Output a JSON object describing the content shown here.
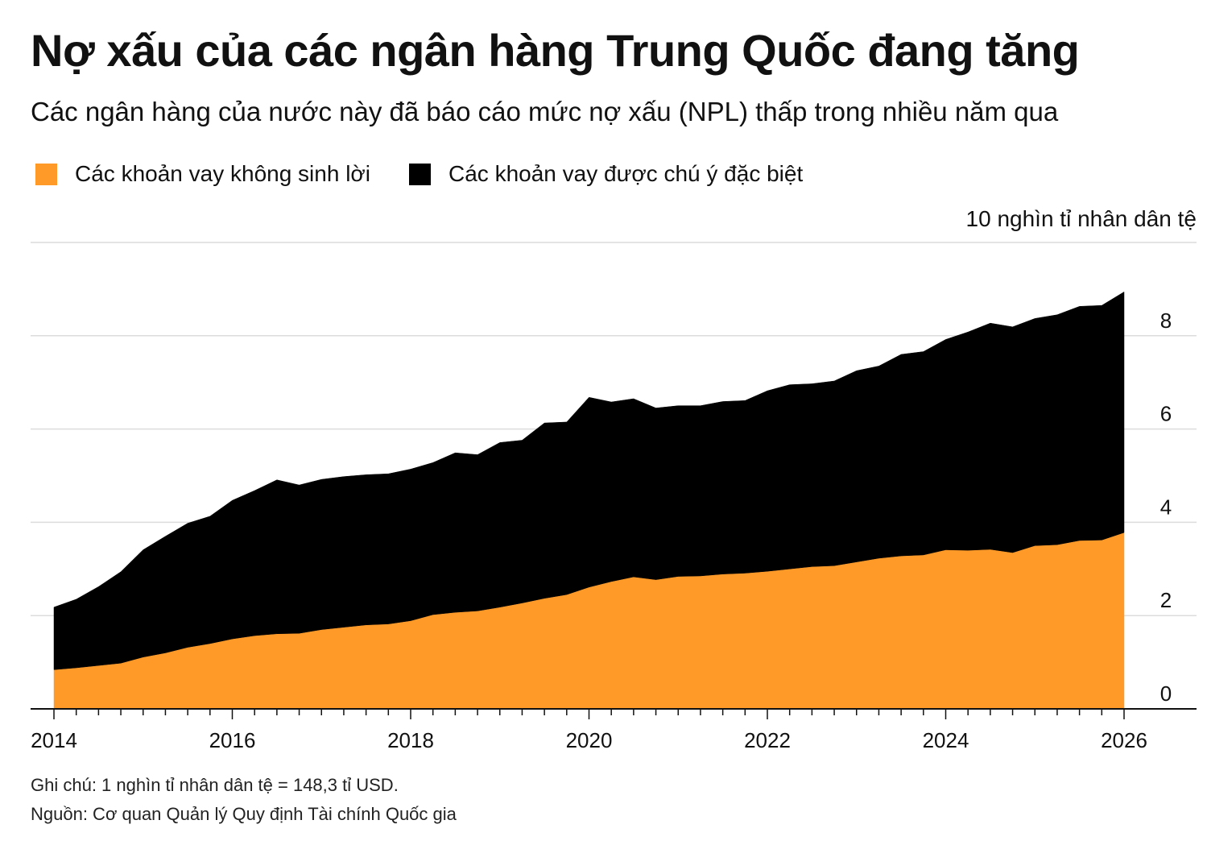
{
  "header": {
    "title": "Nợ xấu của các ngân hàng Trung Quốc đang tăng",
    "subtitle": "Các ngân hàng của nước này đã báo cáo mức nợ xấu (NPL) thấp trong nhiều năm qua"
  },
  "legend": {
    "items": [
      {
        "label": "Các khoản vay không sinh lời",
        "color": "#FF9A28"
      },
      {
        "label": "Các khoản vay được chú ý đặc biệt",
        "color": "#000000"
      }
    ]
  },
  "unit_label": "10 nghìn tỉ nhân dân tệ",
  "notes": {
    "note": "Ghi chú: 1 nghìn tỉ nhân dân tệ = 148,3 tỉ USD.",
    "source": "Nguồn: Cơ quan Quản lý Quy định Tài chính Quốc gia"
  },
  "chart_data": {
    "type": "area",
    "stacked": true,
    "title": "Nợ xấu của các ngân hàng Trung Quốc đang tăng",
    "subtitle": "Các ngân hàng của nước này đã báo cáo mức nợ xấu (NPL) thấp trong nhiều năm qua",
    "ylabel": "10 nghìn tỉ nhân dân tệ",
    "ylim": [
      0,
      10
    ],
    "yticks": [
      0,
      2,
      4,
      6,
      8
    ],
    "xlim": [
      2014,
      2026
    ],
    "xticks": [
      2014,
      2016,
      2018,
      2020,
      2022,
      2024,
      2026
    ],
    "y_axis_position": "right",
    "grid": true,
    "legend_position": "top-left",
    "x": [
      2014.0,
      2014.25,
      2014.5,
      2014.75,
      2015.0,
      2015.25,
      2015.5,
      2015.75,
      2016.0,
      2016.25,
      2016.5,
      2016.75,
      2017.0,
      2017.25,
      2017.5,
      2017.75,
      2018.0,
      2018.25,
      2018.5,
      2018.75,
      2019.0,
      2019.25,
      2019.5,
      2019.75,
      2020.0,
      2020.25,
      2020.5,
      2020.75,
      2021.0,
      2021.25,
      2021.5,
      2021.75,
      2022.0,
      2022.25,
      2022.5,
      2022.75,
      2023.0,
      2023.25,
      2023.5,
      2023.75,
      2024.0,
      2024.25,
      2024.5,
      2024.75,
      2025.0,
      2025.25,
      2025.5,
      2025.75,
      2026.0
    ],
    "series": [
      {
        "name": "Các khoản vay không sinh lời",
        "color": "#FF9A28",
        "values": [
          0.84,
          0.88,
          0.93,
          0.98,
          1.11,
          1.2,
          1.32,
          1.4,
          1.5,
          1.57,
          1.61,
          1.62,
          1.7,
          1.75,
          1.8,
          1.82,
          1.89,
          2.02,
          2.07,
          2.1,
          2.18,
          2.27,
          2.37,
          2.45,
          2.61,
          2.73,
          2.83,
          2.77,
          2.84,
          2.85,
          2.89,
          2.91,
          2.95,
          3.0,
          3.05,
          3.07,
          3.15,
          3.23,
          3.28,
          3.3,
          3.41,
          3.4,
          3.42,
          3.35,
          3.5,
          3.52,
          3.61,
          3.62,
          3.78
        ]
      },
      {
        "name": "Các khoản vay được chú ý đặc biệt",
        "color": "#000000",
        "values": [
          1.34,
          1.47,
          1.69,
          1.96,
          2.3,
          2.5,
          2.66,
          2.73,
          2.97,
          3.11,
          3.3,
          3.18,
          3.22,
          3.23,
          3.22,
          3.22,
          3.25,
          3.26,
          3.42,
          3.35,
          3.53,
          3.49,
          3.76,
          3.7,
          4.07,
          3.85,
          3.82,
          3.68,
          3.66,
          3.65,
          3.7,
          3.7,
          3.87,
          3.95,
          3.92,
          3.96,
          4.1,
          4.12,
          4.32,
          4.36,
          4.51,
          4.68,
          4.85,
          4.84,
          4.87,
          4.93,
          5.02,
          5.03,
          5.16
        ]
      }
    ]
  }
}
